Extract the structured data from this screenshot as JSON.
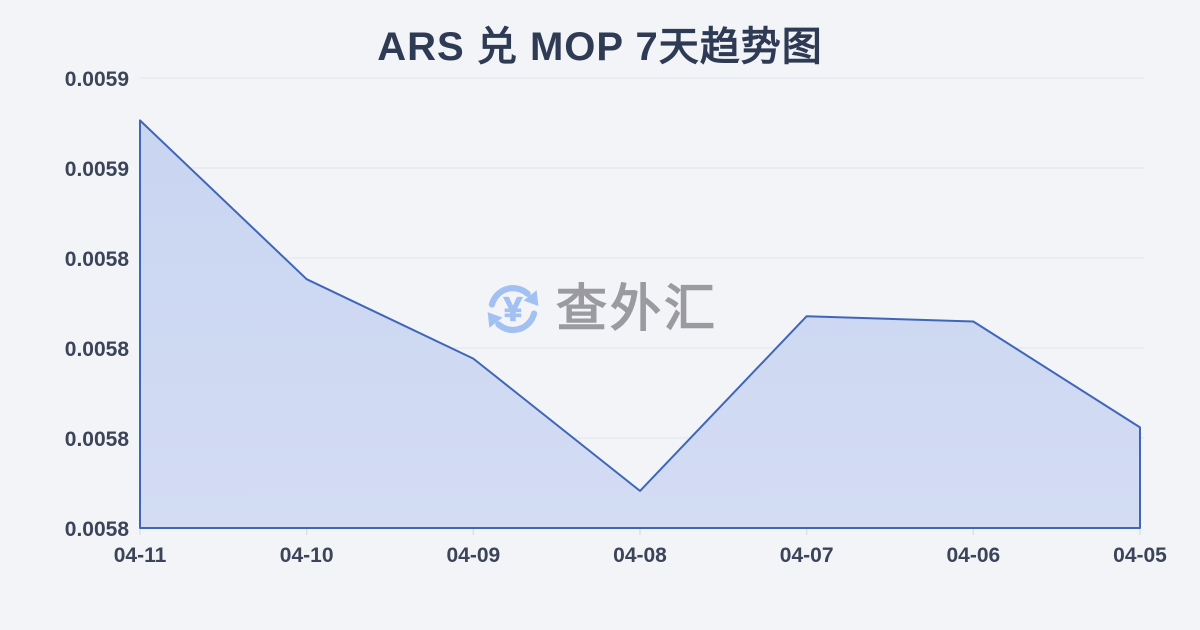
{
  "page": {
    "background_color": "#f2f4f7"
  },
  "header": {
    "title": "ARS 兑 MOP 7天趋势图",
    "title_color": "#2f3b55"
  },
  "watermark": {
    "text": "查外汇",
    "text_color": "#9a9aa0",
    "icon": "currency-exchange-icon",
    "icon_color": "#a2c0f2",
    "icon_symbol": "¥"
  },
  "chart_data": {
    "type": "area",
    "title": "ARS 兑 MOP 7天趋势图",
    "categories": [
      "04-11",
      "04-10",
      "04-09",
      "04-08",
      "04-07",
      "04-06",
      "04-05"
    ],
    "values": [
      0.005872,
      0.005842,
      0.005827,
      0.005802,
      0.005835,
      0.005834,
      0.005814
    ],
    "xlabel": "",
    "ylabel": "",
    "ylim": [
      0.005795,
      0.00588
    ],
    "ytick_labels_top_to_bottom": [
      "0.0059",
      "0.0059",
      "0.0058",
      "0.0058",
      "0.0058",
      "0.0058"
    ],
    "grid": true,
    "legend": false,
    "line_color": "#3f66b8",
    "fill_color_top": "#c9d5f1",
    "fill_color_bottom": "#d3dcf3",
    "grid_color": "#e4e7ec",
    "axis_tick_color": "#d8dbe1",
    "label_color": "#3b4458"
  }
}
